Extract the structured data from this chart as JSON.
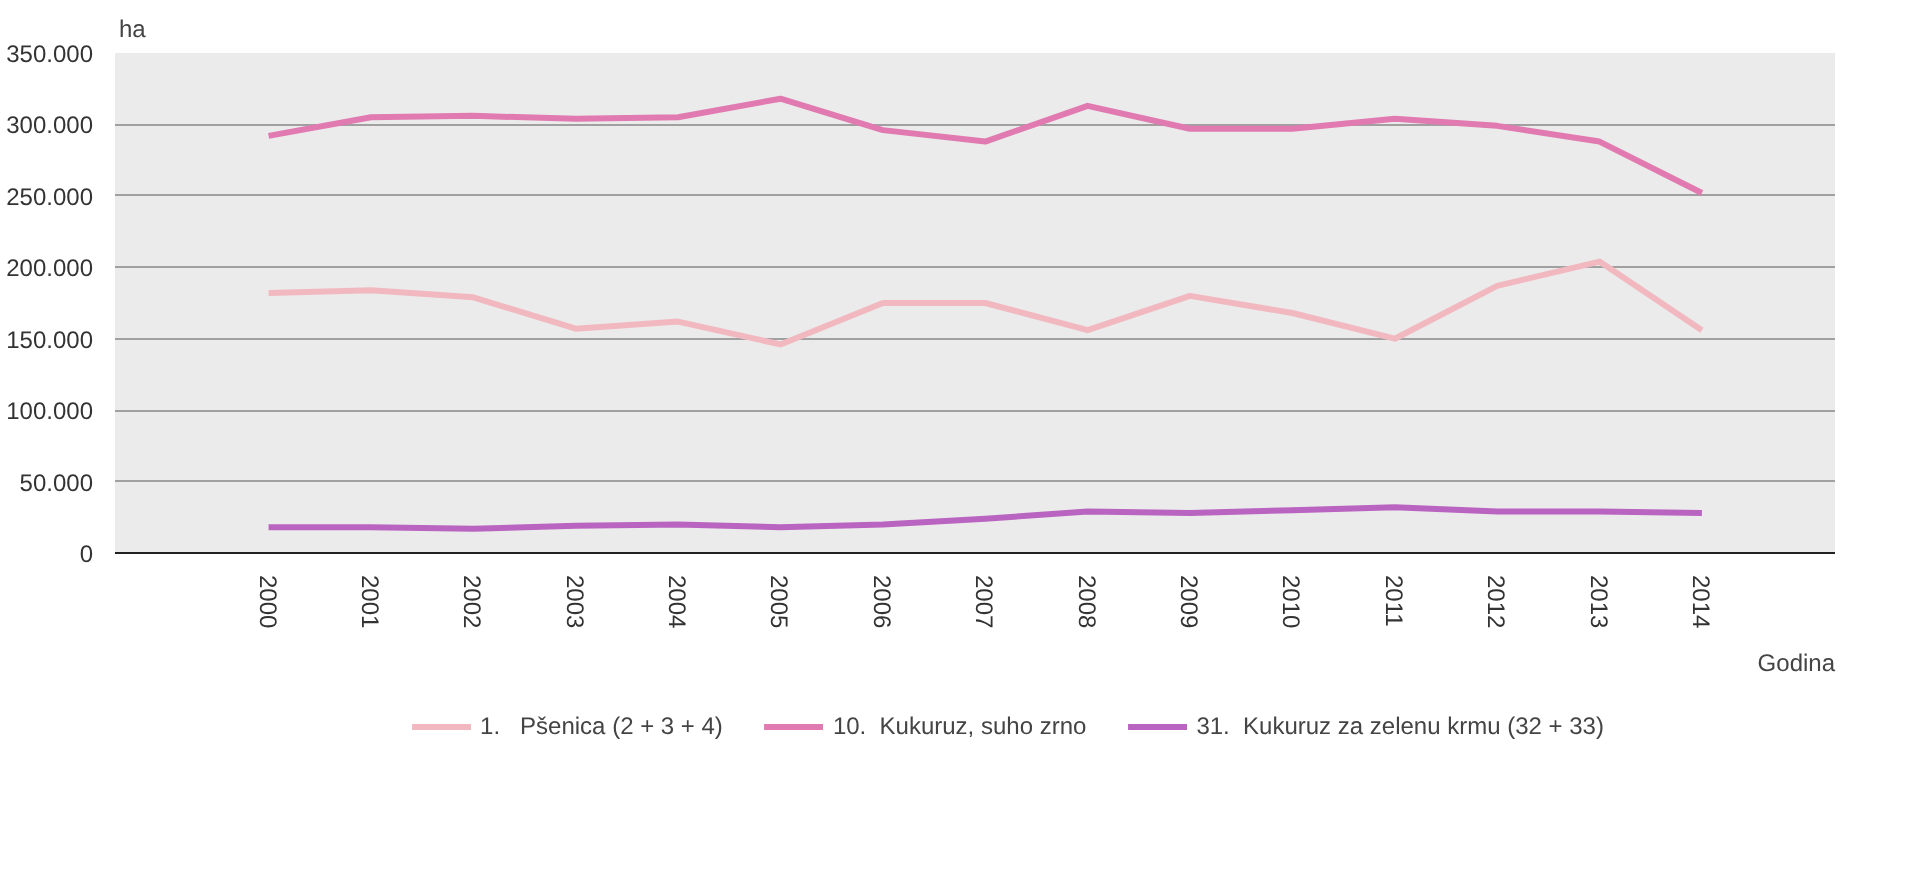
{
  "chart_data": {
    "type": "line",
    "ylabel": "ha",
    "xlabel": "Godina",
    "categories": [
      "2000",
      "2001",
      "2002",
      "2003",
      "2004",
      "2005",
      "2006",
      "2007",
      "2008",
      "2009",
      "2010",
      "2011",
      "2012",
      "2013",
      "2014"
    ],
    "ylim": [
      0,
      350000
    ],
    "yticks": [
      0,
      {
        "value": 50000,
        "label": "50.000"
      },
      {
        "value": 100000,
        "label": "100.000"
      },
      {
        "value": 150000,
        "label": "150.000"
      },
      {
        "value": 200000,
        "label": "200.000"
      },
      {
        "value": 250000,
        "label": "250.000"
      },
      {
        "value": 300000,
        "label": "300.000"
      },
      {
        "value": 350000,
        "label": "350.000"
      }
    ],
    "series": [
      {
        "name": "1.   Pšenica (2 + 3 + 4)",
        "color": "#f2b8c0",
        "values": [
          182000,
          184000,
          179000,
          157000,
          162000,
          146000,
          175000,
          175000,
          156000,
          180000,
          168000,
          150000,
          187000,
          204000,
          156000
        ]
      },
      {
        "name": "10.  Kukuruz, suho zrno",
        "color": "#e07ab0",
        "values": [
          292000,
          305000,
          306000,
          304000,
          305000,
          318000,
          296000,
          288000,
          313000,
          297000,
          297000,
          304000,
          299000,
          288000,
          252000
        ]
      },
      {
        "name": "31.  Kukuruz za zelenu krmu (32 + 33)",
        "color": "#b964c0",
        "values": [
          18000,
          18000,
          17000,
          19000,
          20000,
          18000,
          20000,
          24000,
          29000,
          28000,
          30000,
          32000,
          29000,
          29000,
          28000
        ]
      }
    ],
    "grid": "y",
    "legend": "bottom",
    "line_style": "solid",
    "marker": "none"
  }
}
